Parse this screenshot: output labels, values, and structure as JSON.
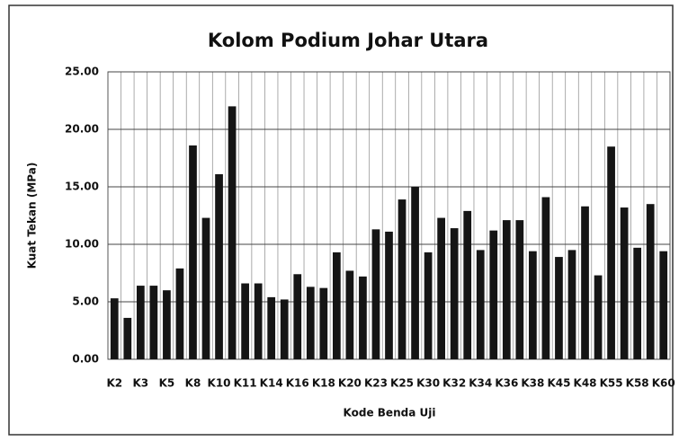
{
  "chart_data": {
    "type": "bar",
    "title": "Kolom Podium Johar Utara",
    "x_label": "Kode Benda Uji",
    "y_label": "Kuat Tekan (MPa)",
    "categories": [
      "K2",
      null,
      "K3",
      null,
      "K5",
      null,
      "K8",
      null,
      "K10",
      null,
      "K11",
      null,
      "K14",
      null,
      "K16",
      null,
      "K18",
      null,
      "K20",
      null,
      "K23",
      null,
      "K25",
      null,
      "K30",
      null,
      "K32",
      null,
      "K34",
      null,
      "K36",
      null,
      "K38",
      null,
      "K45",
      null,
      "K48",
      null,
      "K55",
      null,
      "K58",
      null,
      "K60"
    ],
    "values": [
      5.3,
      3.6,
      6.4,
      6.4,
      6.0,
      7.9,
      18.6,
      12.3,
      16.1,
      22.0,
      6.6,
      6.6,
      5.4,
      5.2,
      7.4,
      6.3,
      6.2,
      9.3,
      7.7,
      7.2,
      11.3,
      11.1,
      13.9,
      15.0,
      9.3,
      12.3,
      11.4,
      12.9,
      9.5,
      11.2,
      12.1,
      12.1,
      9.4,
      14.1,
      8.9,
      9.5,
      13.3,
      7.3,
      18.5,
      13.2,
      9.7,
      13.5,
      9.4
    ],
    "color": "#151515",
    "ylim": [
      0,
      25
    ],
    "yticks": [
      {
        "value": 0,
        "label": "0.00"
      },
      {
        "value": 5,
        "label": "5.00"
      },
      {
        "value": 10,
        "label": "10.00"
      },
      {
        "value": 15,
        "label": "15.00"
      },
      {
        "value": 20,
        "label": "20.00"
      },
      {
        "value": 25,
        "label": "25.00"
      }
    ],
    "grid": true
  }
}
